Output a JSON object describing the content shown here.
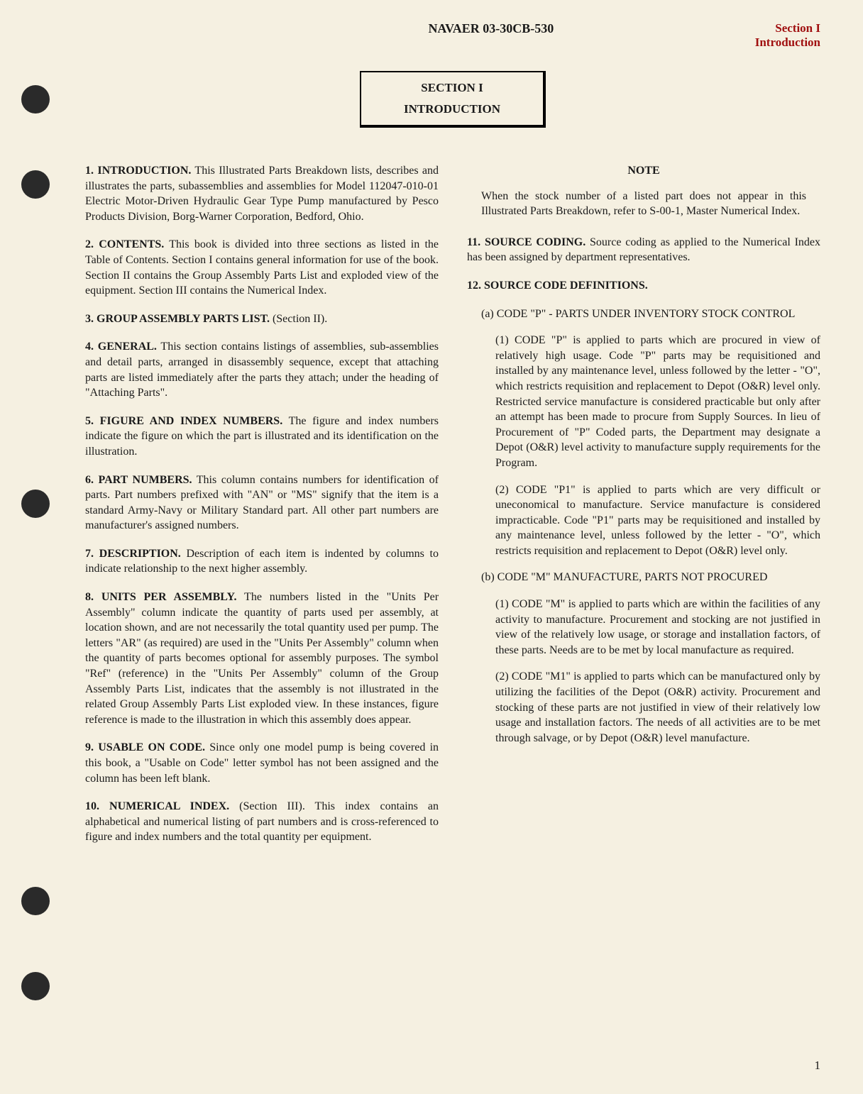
{
  "header": {
    "doc_number": "NAVAER 03-30CB-530",
    "section_label_line1": "Section I",
    "section_label_line2": "Introduction"
  },
  "title_box": {
    "section": "SECTION I",
    "title": "INTRODUCTION"
  },
  "left_column": {
    "p1": {
      "num": "1.",
      "head": "INTRODUCTION.",
      "body": " This Illustrated Parts Breakdown lists, describes and illustrates the parts, subassemblies and assemblies for Model 112047-010-01 Electric Motor-Driven Hydraulic Gear Type Pump manufactured by Pesco Products Division, Borg-Warner Corporation, Bedford, Ohio."
    },
    "p2": {
      "num": "2.",
      "head": "CONTENTS.",
      "body": " This book is divided into three sections as listed in the Table of Contents. Section I contains general information for use of the book. Section II contains the Group Assembly Parts List and exploded view of the equipment. Section III contains the Numerical Index."
    },
    "p3": {
      "num": "3.",
      "head": "GROUP ASSEMBLY PARTS LIST.",
      "body": " (Section II)."
    },
    "p4": {
      "num": "4.",
      "head": "GENERAL.",
      "body": " This section contains listings of assemblies, sub-assemblies and detail parts, arranged in disassembly sequence, except that attaching parts are listed immediately after the parts they attach; under the heading of \"Attaching Parts\"."
    },
    "p5": {
      "num": "5.",
      "head": "FIGURE AND INDEX NUMBERS.",
      "body": " The figure and index numbers indicate the figure on which the part is illustrated and its identification on the illustration."
    },
    "p6": {
      "num": "6.",
      "head": "PART NUMBERS.",
      "body": " This column contains numbers for identification of parts. Part numbers prefixed with \"AN\" or \"MS\" signify that the item is a standard Army-Navy or Military Standard part. All other part numbers are manufacturer's assigned numbers."
    },
    "p7": {
      "num": "7.",
      "head": "DESCRIPTION.",
      "body": " Description of each item is indented by columns to indicate relationship to the next higher assembly."
    },
    "p8": {
      "num": "8.",
      "head": "UNITS PER ASSEMBLY.",
      "body": " The numbers listed in the \"Units Per Assembly\" column indicate the quantity of parts used per assembly, at location shown, and are not necessarily the total quantity used per pump. The letters \"AR\" (as required) are used in the \"Units Per Assembly\" column when the quantity of parts becomes optional for assembly purposes. The symbol \"Ref\" (reference) in the \"Units Per Assembly\" column of the Group Assembly Parts List, indicates that the assembly is not illustrated in the related Group Assembly Parts List exploded view. In these instances, figure reference is made to the illustration in which this assembly does appear."
    },
    "p9": {
      "num": "9.",
      "head": "USABLE ON CODE.",
      "body": " Since only one model pump is being covered in this book, a \"Usable on Code\" letter symbol has not been assigned and the column has been left blank."
    },
    "p10": {
      "num": "10.",
      "head": "NUMERICAL INDEX.",
      "body": " (Section III). This index contains an alphabetical and numerical listing of part numbers and is cross-referenced to figure and index numbers and the total quantity per equipment."
    }
  },
  "right_column": {
    "note_heading": "NOTE",
    "note_body": "When the stock number of a listed part does not appear in this Illustrated Parts Breakdown, refer to S-00-1, Master Numerical Index.",
    "p11": {
      "num": "11.",
      "head": "SOURCE CODING.",
      "body": " Source coding as applied to the Numerical Index has been assigned by department representatives."
    },
    "p12": {
      "num": "12.",
      "head": "SOURCE CODE DEFINITIONS.",
      "body": ""
    },
    "sub_a": {
      "label": "(a)",
      "text": "CODE \"P\" - PARTS UNDER INVENTORY STOCK CONTROL"
    },
    "sub_a1": {
      "label": "(1)",
      "text": "CODE \"P\" is applied to parts which are procured in view of relatively high usage. Code \"P\" parts may be requisitioned and installed by any maintenance level, unless followed by the letter - \"O\", which restricts requisition and replacement to Depot (O&R) level only. Restricted service manufacture is considered practicable but only after an attempt has been made to procure from Supply Sources. In lieu of Procurement of \"P\" Coded parts, the Department may designate a Depot (O&R) level activity to manufacture supply requirements for the Program."
    },
    "sub_a2": {
      "label": "(2)",
      "text": "CODE \"P1\" is applied to parts which are very difficult or uneconomical to manufacture. Service manufacture is considered impracticable. Code \"P1\" parts may be requisitioned and installed by any maintenance level, unless followed by the letter - \"O\", which restricts requisition and replacement to Depot (O&R) level only."
    },
    "sub_b": {
      "label": "(b)",
      "text": "CODE \"M\" MANUFACTURE, PARTS NOT PROCURED"
    },
    "sub_b1": {
      "label": "(1)",
      "text": "CODE \"M\" is applied to parts which are within the facilities of any activity to manufacture. Procurement and stocking are not justified in view of the relatively low usage, or storage and installation factors, of these parts. Needs are to be met by local manufacture as required."
    },
    "sub_b2": {
      "label": "(2)",
      "text": "CODE \"M1\" is applied to parts which can be manufactured only by utilizing the facilities of the Depot (O&R) activity. Procurement and stocking of these parts are not justified in view of their relatively low usage and installation factors. The needs of all activities are to be met through salvage, or by Depot (O&R) level manufacture."
    }
  },
  "page_number": "1"
}
